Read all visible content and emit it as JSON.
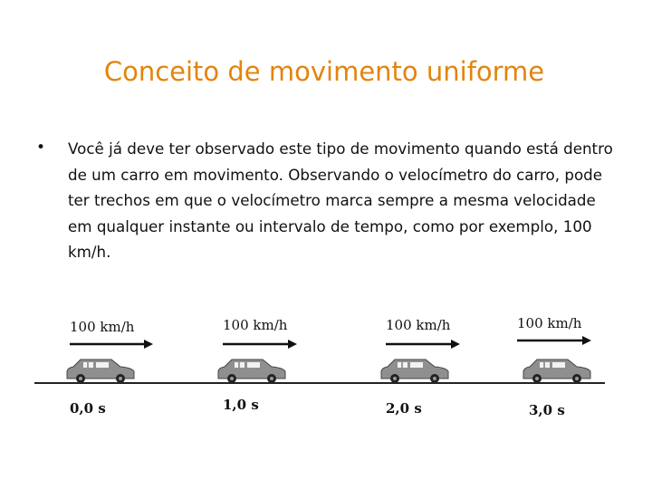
{
  "title": "Conceito de movimento uniforme",
  "bullet": "Você já deve ter observado este tipo de movimento quando está dentro de um carro em movimento. Observando o velocímetro do carro, pode ter trechos em que o velocímetro marca sempre a mesma velocidade em qualquer instante ou intervalo de tempo, como por exemplo, 100 km/h.",
  "illustration": {
    "stages": [
      {
        "speed": "100 km/h",
        "time": "0,0 s"
      },
      {
        "speed": "100 km/h",
        "time": "1,0 s"
      },
      {
        "speed": "100 km/h",
        "time": "2,0 s"
      },
      {
        "speed": "100 km/h",
        "time": "3,0 s"
      }
    ],
    "icons": [
      "car-icon",
      "arrow-right-icon"
    ],
    "colors": {
      "title": "#E3840D",
      "car": "#8a8a8a"
    }
  }
}
